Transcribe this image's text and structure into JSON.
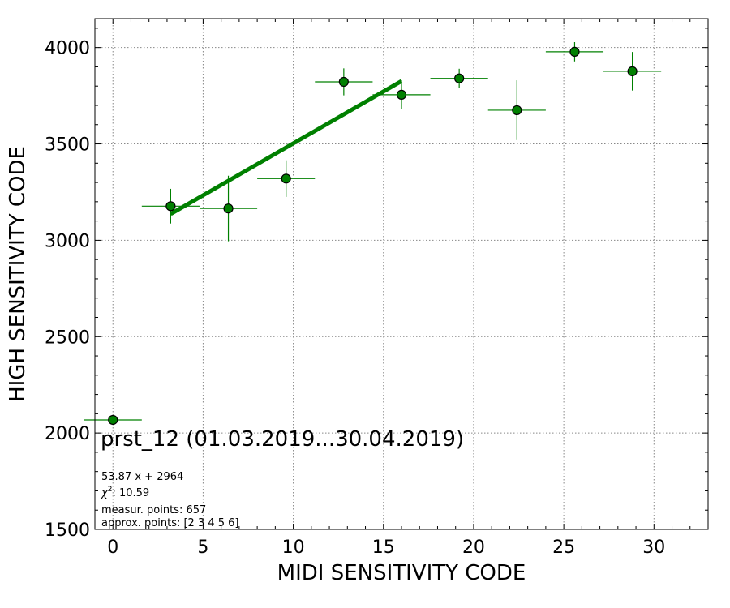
{
  "chart_data": {
    "type": "scatter",
    "xlabel": "MIDI SENSITIVITY CODE",
    "ylabel": "HIGH SENSITIVITY CODE",
    "xlim": [
      -1,
      33
    ],
    "ylim": [
      1500,
      4150
    ],
    "xticks": [
      0,
      5,
      10,
      15,
      20,
      25,
      30
    ],
    "yticks": [
      1500,
      2000,
      2500,
      3000,
      3500,
      4000
    ],
    "grid": true,
    "marker_color": "#008000",
    "fit_color": "#008000",
    "points": [
      {
        "x": 0.0,
        "y": 2068,
        "xerr": 1.6,
        "yerr": 0
      },
      {
        "x": 3.2,
        "y": 3177,
        "xerr": 1.6,
        "yerr": 90
      },
      {
        "x": 6.4,
        "y": 3165,
        "xerr": 1.6,
        "yerr": 170
      },
      {
        "x": 9.6,
        "y": 3320,
        "xerr": 1.6,
        "yerr": 95
      },
      {
        "x": 12.8,
        "y": 3822,
        "xerr": 1.6,
        "yerr": 70
      },
      {
        "x": 16.0,
        "y": 3755,
        "xerr": 1.6,
        "yerr": 75
      },
      {
        "x": 19.2,
        "y": 3840,
        "xerr": 1.6,
        "yerr": 50
      },
      {
        "x": 22.4,
        "y": 3675,
        "xerr": 1.6,
        "yerr": 155
      },
      {
        "x": 25.6,
        "y": 3978,
        "xerr": 1.6,
        "yerr": 50
      },
      {
        "x": 28.8,
        "y": 3877,
        "xerr": 1.6,
        "yerr": 100
      }
    ],
    "fit": {
      "slope": 53.87,
      "intercept": 2964,
      "x_range": [
        3.2,
        16.0
      ]
    },
    "annotations": {
      "title": "prst_12 (01.03.2019...30.04.2019)",
      "equation": "53.87 x + 2964",
      "chi2_prefix": "χ",
      "chi2_sup": "2",
      "chi2_value": ": 10.59",
      "measur_points": "measur. points: 657",
      "approx_points": "approx. points: [2 3 4 5 6]"
    }
  }
}
